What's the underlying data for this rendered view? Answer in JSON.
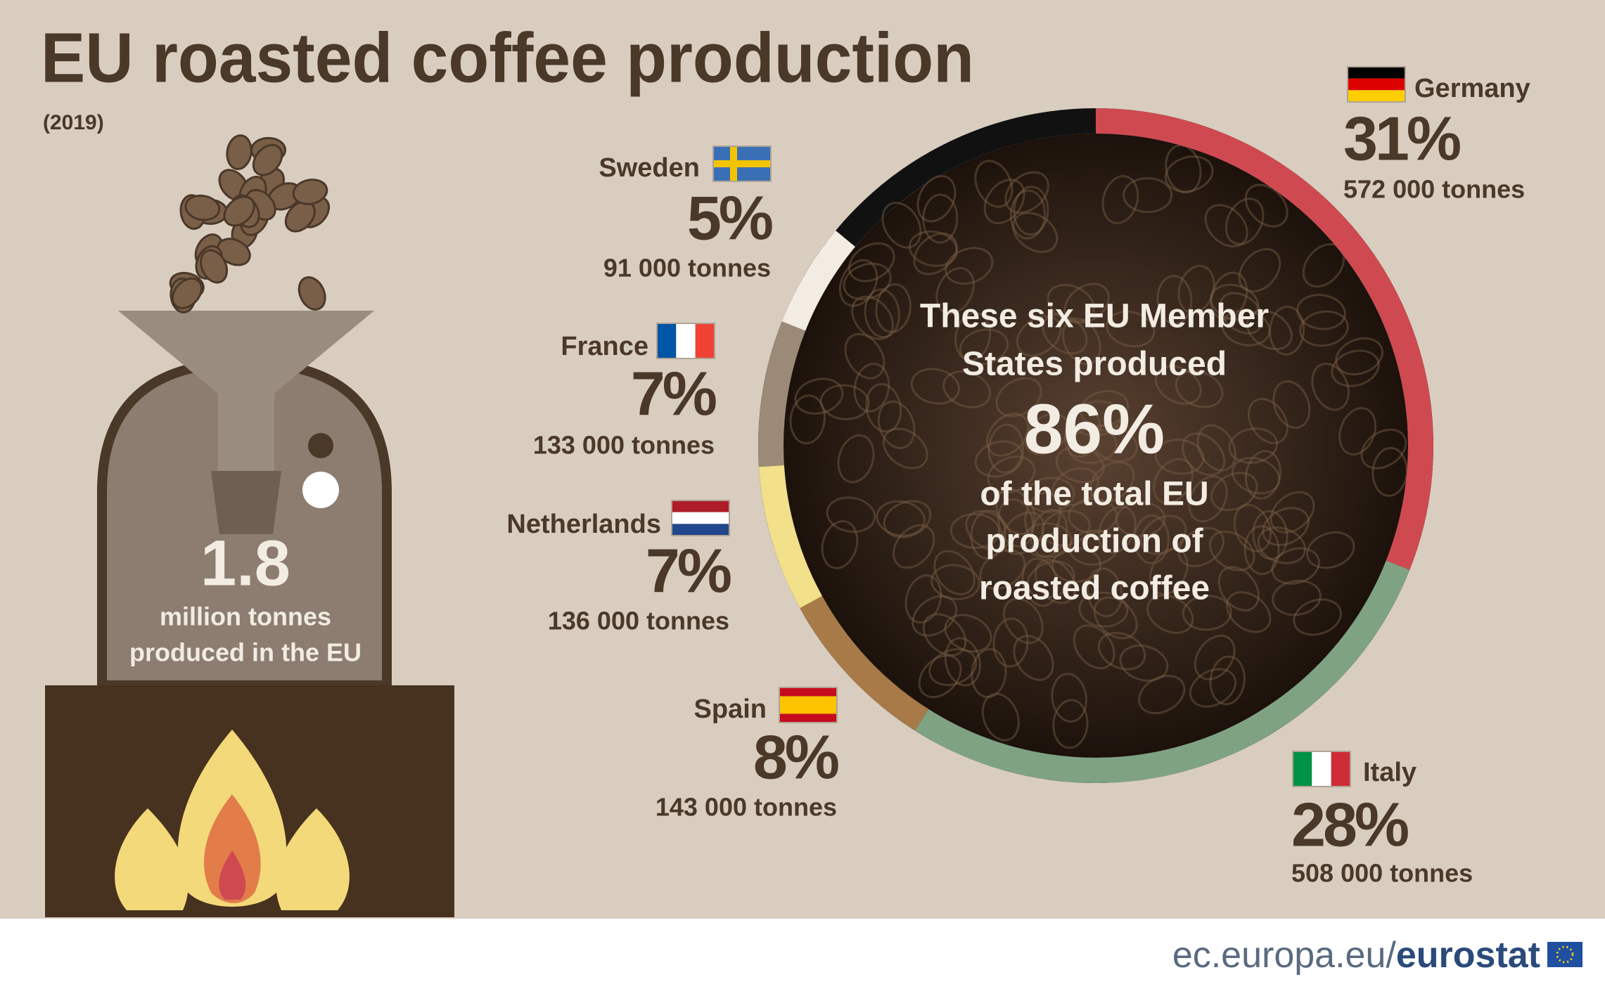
{
  "chart_data": {
    "type": "donut",
    "title": "EU roasted coffee production",
    "subtitle": "(2019)",
    "categories": [
      "Germany",
      "Italy",
      "Spain",
      "Netherlands",
      "France",
      "Sweden"
    ],
    "values": [
      31,
      28,
      8,
      7,
      7,
      5
    ],
    "value_labels": [
      "31%",
      "28%",
      "8%",
      "7%",
      "7%",
      "5%"
    ],
    "colors": [
      "#cf4a50",
      "#7fa283",
      "#a87a48",
      "#f2e08a",
      "#9b8a78",
      "#f3ece3"
    ],
    "tonnes": [
      {
        "value": 572000,
        "label": "572 000 tonnes"
      },
      {
        "value": 508000,
        "label": "508 000 tonnes"
      },
      {
        "value": 143000,
        "label": "143 000 tonnes"
      },
      {
        "value": 136000,
        "label": "136 000 tonnes"
      },
      {
        "value": 133000,
        "label": "133 000 tonnes"
      },
      {
        "value": 91000,
        "label": "91 000 tonnes"
      }
    ],
    "center": {
      "intro_lines": [
        "These six EU Member",
        "States produced"
      ],
      "value": 86,
      "label": "86%",
      "outro_lines": [
        "of the total EU",
        "production of",
        "roasted coffee"
      ]
    },
    "total": {
      "value": 1.8,
      "lines": [
        "million tonnes",
        "produced in the EU"
      ]
    },
    "footer": {
      "site": "ec.europa.eu/",
      "brand": "eurostat"
    }
  }
}
